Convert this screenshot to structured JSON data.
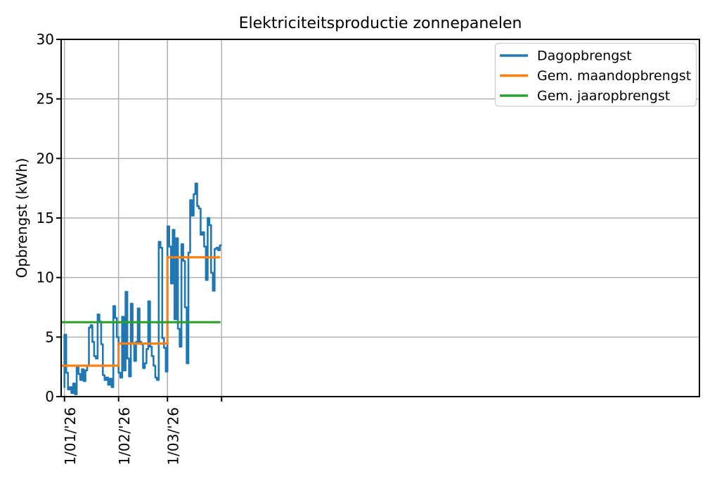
{
  "title": "Elektriciteitsproductie zonnepanelen",
  "colors": {
    "dag": "#1f77b4",
    "maand": "#ff7f0e",
    "jaar": "#2ca02c",
    "grid": "#b0b0b0",
    "axes": "#000000",
    "legend_border": "#cccccc",
    "background": "#ffffff"
  },
  "legend": {
    "position": "upper right",
    "items": [
      {
        "label": "Dagopbrengst",
        "color": "#1f77b4"
      },
      {
        "label": "Gem. maandopbrengst",
        "color": "#ff7f0e"
      },
      {
        "label": "Gem. jaaropbrengst",
        "color": "#2ca02c"
      }
    ]
  },
  "chart_data": {
    "type": "line",
    "title": "Elektriciteitsproductie zonnepanelen",
    "xlabel": "",
    "ylabel": "Opbrengst (kWh)",
    "ylim": [
      0,
      30
    ],
    "y_ticks": [
      0,
      5,
      10,
      15,
      20,
      25,
      30
    ],
    "x_ticks": [
      {
        "day": 0,
        "label": "1/01/'26"
      },
      {
        "day": 31,
        "label": "1/02/'26"
      },
      {
        "day": 59,
        "label": "1/03/'26"
      },
      {
        "day": 90,
        "label": ""
      }
    ],
    "x_range_days": [
      -2,
      363.5
    ],
    "grid": true,
    "legend_position": "upper right",
    "series": [
      {
        "name": "Dagopbrengst",
        "type": "steps-post",
        "color": "#1f77b4",
        "start_day": 0,
        "lead_in_value": 0.8,
        "values": [
          5.2,
          2.0,
          0.6,
          0.8,
          0.3,
          1.1,
          0.2,
          2.5,
          1.9,
          1.4,
          2.3,
          1.3,
          2.2,
          2.6,
          5.8,
          6.0,
          4.6,
          3.4,
          3.2,
          6.9,
          6.3,
          4.4,
          1.8,
          1.4,
          1.6,
          1.0,
          1.5,
          0.8,
          7.6,
          6.6,
          5.0,
          2.0,
          1.6,
          6.7,
          2.2,
          8.8,
          3.2,
          1.7,
          7.8,
          4.5,
          3.0,
          4.6,
          7.4,
          4.6,
          4.4,
          2.4,
          2.8,
          4.0,
          8.0,
          4.2,
          3.4,
          2.6,
          1.6,
          1.4,
          13.0,
          12.5,
          4.9,
          4.1,
          2.1,
          14.3,
          12.6,
          9.5,
          14.0,
          6.5,
          13.3,
          5.7,
          4.2,
          12.8,
          11.4,
          7.5,
          2.8,
          12.1,
          16.5,
          15.2,
          17.0,
          17.9,
          16.0,
          15.8,
          13.6,
          13.8,
          12.6,
          9.8,
          15.0,
          14.4,
          10.4,
          8.9,
          12.4,
          12.5,
          12.3,
          12.7
        ]
      },
      {
        "name": "Gem. maandopbrengst",
        "type": "steps",
        "color": "#ff7f0e",
        "segments": [
          {
            "month": "januari",
            "from_day": -2,
            "to_day": 31,
            "value": 2.6
          },
          {
            "month": "februari",
            "from_day": 31,
            "to_day": 59,
            "value": 4.45
          },
          {
            "month": "maart",
            "from_day": 59,
            "to_day": 89.2,
            "value": 11.7
          }
        ]
      },
      {
        "name": "Gem. jaaropbrengst",
        "type": "hline",
        "color": "#2ca02c",
        "from_day": -2,
        "to_day": 89.4,
        "value": 6.25
      }
    ]
  }
}
